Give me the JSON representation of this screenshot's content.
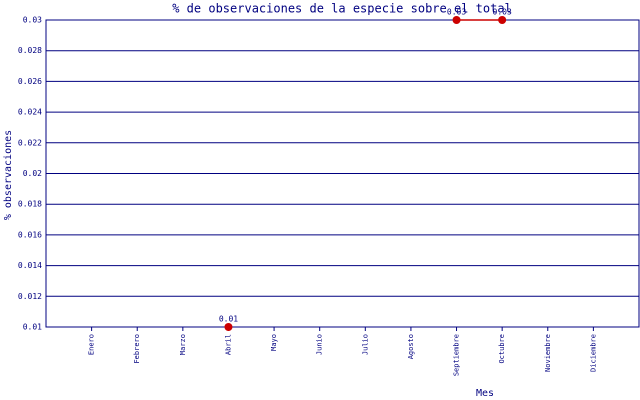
{
  "chart_data": {
    "type": "line",
    "title": "% de observaciones de la especie sobre el total",
    "x_label": "Mes",
    "y_label": "% observaciones",
    "categories": [
      "Enero",
      "Febrero",
      "Marzo",
      "Abril",
      "Mayo",
      "Junio",
      "Julio",
      "Agosto",
      "Septiembre",
      "Octubre",
      "Noviembre",
      "Diciembre"
    ],
    "series": [
      {
        "name": "observaciones",
        "color": "#cc0000",
        "values": [
          null,
          null,
          null,
          0.01,
          null,
          null,
          null,
          null,
          0.03,
          0.03,
          null,
          null
        ]
      }
    ],
    "ylim": [
      0.01,
      0.03
    ],
    "yticks": [
      0.01,
      0.012,
      0.014,
      0.016,
      0.018,
      0.02,
      0.022,
      0.024,
      0.026,
      0.028,
      0.03
    ],
    "grid": true
  }
}
